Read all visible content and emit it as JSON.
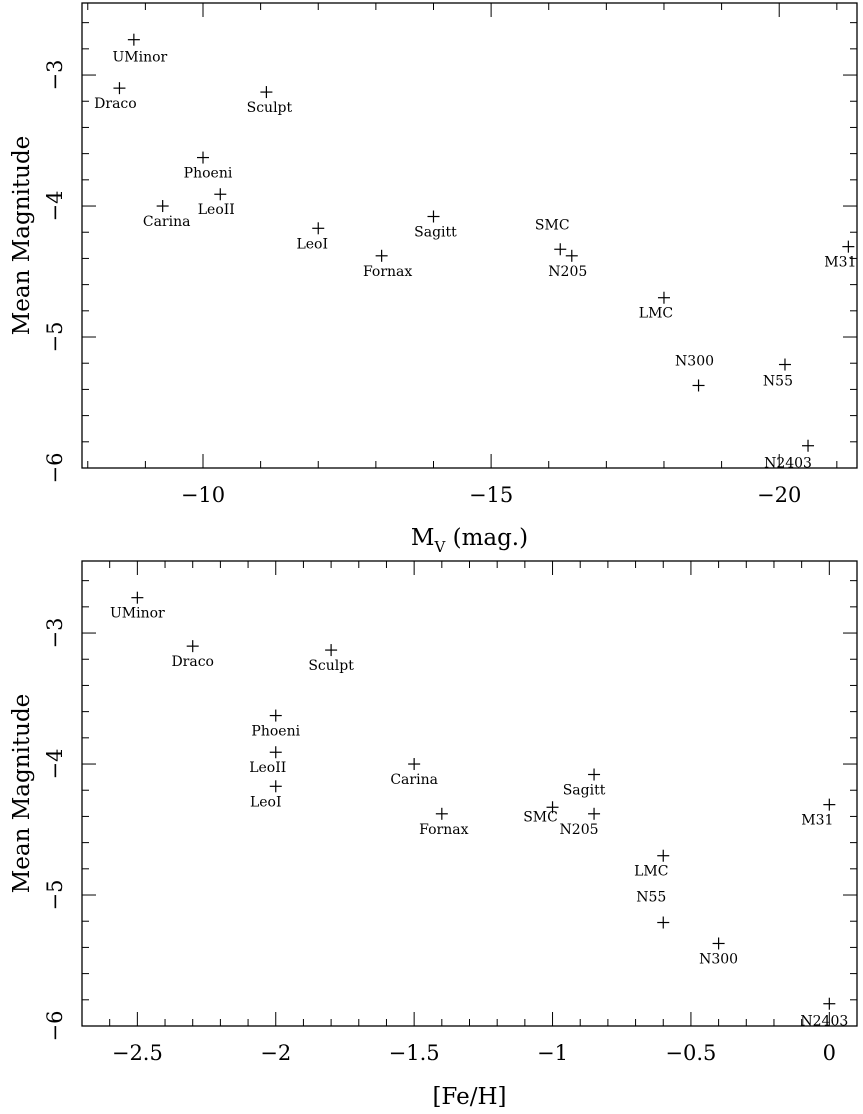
{
  "chart_data": [
    {
      "type": "scatter",
      "xlabel": "M",
      "xlabel_sub": "V",
      "xlabel_suffix": " (mag.)",
      "ylabel": "Mean Magnitude",
      "xlim": [
        -7.9,
        -21.35
      ],
      "ylim": [
        -2.45,
        -6.0
      ],
      "xticks": [
        -10,
        -15,
        -20
      ],
      "xtick_labels": [
        "−10",
        "−15",
        "−20"
      ],
      "yticks": [
        -3,
        -4,
        -5,
        -6
      ],
      "ytick_labels": [
        "−3",
        "−4",
        "−5",
        "−6"
      ],
      "grid": false,
      "points": [
        {
          "label": "UMinor",
          "x": -8.8,
          "y": -2.73
        },
        {
          "label": "Draco",
          "x": -8.55,
          "y": -3.1
        },
        {
          "label": "Sculpt",
          "x": -11.1,
          "y": -3.13
        },
        {
          "label": "Phoeni",
          "x": -10.0,
          "y": -3.63
        },
        {
          "label": "LeoII",
          "x": -10.3,
          "y": -3.91
        },
        {
          "label": "Carina",
          "x": -9.3,
          "y": -4.0
        },
        {
          "label": "LeoI",
          "x": -12.0,
          "y": -4.17
        },
        {
          "label": "Sagitt",
          "x": -14.0,
          "y": -4.08
        },
        {
          "label": "Fornax",
          "x": -13.1,
          "y": -4.38
        },
        {
          "label": "SMC",
          "x": -16.2,
          "y": -4.33
        },
        {
          "label": "N205",
          "x": -16.4,
          "y": -4.38
        },
        {
          "label": "M31",
          "x": -21.2,
          "y": -4.31
        },
        {
          "label": "LMC",
          "x": -18.0,
          "y": -4.7
        },
        {
          "label": "N300",
          "x": -18.6,
          "y": -5.37
        },
        {
          "label": "N55",
          "x": -20.1,
          "y": -5.21
        },
        {
          "label": "N2403",
          "x": -20.5,
          "y": -5.83
        }
      ]
    },
    {
      "type": "scatter",
      "xlabel": "[Fe/H]",
      "ylabel": "Mean Magnitude",
      "xlim": [
        -2.7,
        0.1
      ],
      "ylim": [
        -2.45,
        -6.0
      ],
      "xticks": [
        -2.5,
        -2,
        -1.5,
        -1,
        -0.5,
        0
      ],
      "xtick_labels": [
        "−2.5",
        "−2",
        "−1.5",
        "−1",
        "−0.5",
        "0"
      ],
      "yticks": [
        -3,
        -4,
        -5,
        -6
      ],
      "ytick_labels": [
        "−3",
        "−4",
        "−5",
        "−6"
      ],
      "grid": false,
      "points": [
        {
          "label": "UMinor",
          "x": -2.5,
          "y": -2.73
        },
        {
          "label": "Draco",
          "x": -2.3,
          "y": -3.1
        },
        {
          "label": "Sculpt",
          "x": -1.8,
          "y": -3.13
        },
        {
          "label": "Phoeni",
          "x": -2.0,
          "y": -3.63
        },
        {
          "label": "LeoII",
          "x": -2.0,
          "y": -3.91
        },
        {
          "label": "LeoI",
          "x": -2.0,
          "y": -4.17
        },
        {
          "label": "Carina",
          "x": -1.5,
          "y": -4.0
        },
        {
          "label": "Fornax",
          "x": -1.4,
          "y": -4.38
        },
        {
          "label": "Sagitt",
          "x": -0.85,
          "y": -4.08
        },
        {
          "label": "SMC",
          "x": -1.0,
          "y": -4.33
        },
        {
          "label": "N205",
          "x": -0.85,
          "y": -4.38
        },
        {
          "label": "M31",
          "x": 0.0,
          "y": -4.31
        },
        {
          "label": "LMC",
          "x": -0.6,
          "y": -4.7
        },
        {
          "label": "N55",
          "x": -0.6,
          "y": -5.21
        },
        {
          "label": "N300",
          "x": -0.4,
          "y": -5.37
        },
        {
          "label": "N2403",
          "x": 0.0,
          "y": -5.83
        }
      ]
    }
  ]
}
